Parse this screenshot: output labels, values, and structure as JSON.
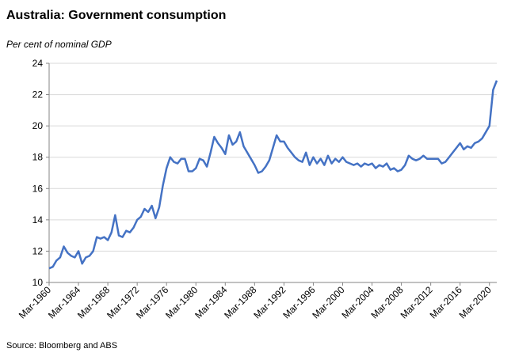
{
  "chart_data": {
    "type": "line",
    "title": "Australia: Government consumption",
    "y_axis_label": "Per cent of nominal GDP",
    "source": "Source: Bloomberg and ABS",
    "categories": [
      "Mar-1960",
      null,
      null,
      null,
      null,
      null,
      null,
      null,
      "Mar-1964",
      null,
      null,
      null,
      null,
      null,
      null,
      null,
      "Mar-1968",
      null,
      null,
      null,
      null,
      null,
      null,
      null,
      "Mar-1972",
      null,
      null,
      null,
      null,
      null,
      null,
      null,
      "Mar-1976",
      null,
      null,
      null,
      null,
      null,
      null,
      null,
      "Mar-1980",
      null,
      null,
      null,
      null,
      null,
      null,
      null,
      "Mar-1984",
      null,
      null,
      null,
      null,
      null,
      null,
      null,
      "Mar-1988",
      null,
      null,
      null,
      null,
      null,
      null,
      null,
      "Mar-1992",
      null,
      null,
      null,
      null,
      null,
      null,
      null,
      "Mar-1996",
      null,
      null,
      null,
      null,
      null,
      null,
      null,
      "Mar-2000",
      null,
      null,
      null,
      null,
      null,
      null,
      null,
      "Mar-2004",
      null,
      null,
      null,
      null,
      null,
      null,
      null,
      "Mar-2008",
      null,
      null,
      null,
      null,
      null,
      null,
      null,
      "Mar-2012",
      null,
      null,
      null,
      null,
      null,
      null,
      null,
      "Mar-2016",
      null,
      null,
      null,
      null,
      null,
      null,
      null,
      "Mar-2020",
      null,
      null
    ],
    "series": [
      {
        "name": "Government consumption",
        "color": "#4472c4",
        "values": [
          10.9,
          11.0,
          11.4,
          11.6,
          12.3,
          11.9,
          11.7,
          11.6,
          12.0,
          11.2,
          11.6,
          11.7,
          12.0,
          12.9,
          12.8,
          12.9,
          12.7,
          13.2,
          14.3,
          13.0,
          12.9,
          13.3,
          13.2,
          13.5,
          14.0,
          14.2,
          14.7,
          14.5,
          14.9,
          14.1,
          14.8,
          16.2,
          17.3,
          18.0,
          17.7,
          17.6,
          17.9,
          17.9,
          17.1,
          17.1,
          17.3,
          17.9,
          17.8,
          17.4,
          18.3,
          19.3,
          18.9,
          18.6,
          18.2,
          19.4,
          18.8,
          19.0,
          19.6,
          18.7,
          18.3,
          17.9,
          17.5,
          17.0,
          17.1,
          17.4,
          17.8,
          18.6,
          19.4,
          19.0,
          19.0,
          18.6,
          18.3,
          18.0,
          17.8,
          17.7,
          18.3,
          17.5,
          18.0,
          17.6,
          17.9,
          17.5,
          18.1,
          17.6,
          17.9,
          17.7,
          18.0,
          17.7,
          17.6,
          17.5,
          17.6,
          17.4,
          17.6,
          17.5,
          17.6,
          17.3,
          17.5,
          17.4,
          17.6,
          17.2,
          17.3,
          17.1,
          17.2,
          17.5,
          18.1,
          17.9,
          17.8,
          17.9,
          18.1,
          17.9,
          17.9,
          17.9,
          17.9,
          17.6,
          17.7,
          18.0,
          18.3,
          18.6,
          18.9,
          18.5,
          18.7,
          18.6,
          18.9,
          19.0,
          19.2,
          19.6,
          20.0,
          22.3,
          22.9
        ]
      }
    ],
    "ylim": [
      10,
      24
    ],
    "yticks": [
      10,
      12,
      14,
      16,
      18,
      20,
      22,
      24
    ],
    "grid": true
  }
}
